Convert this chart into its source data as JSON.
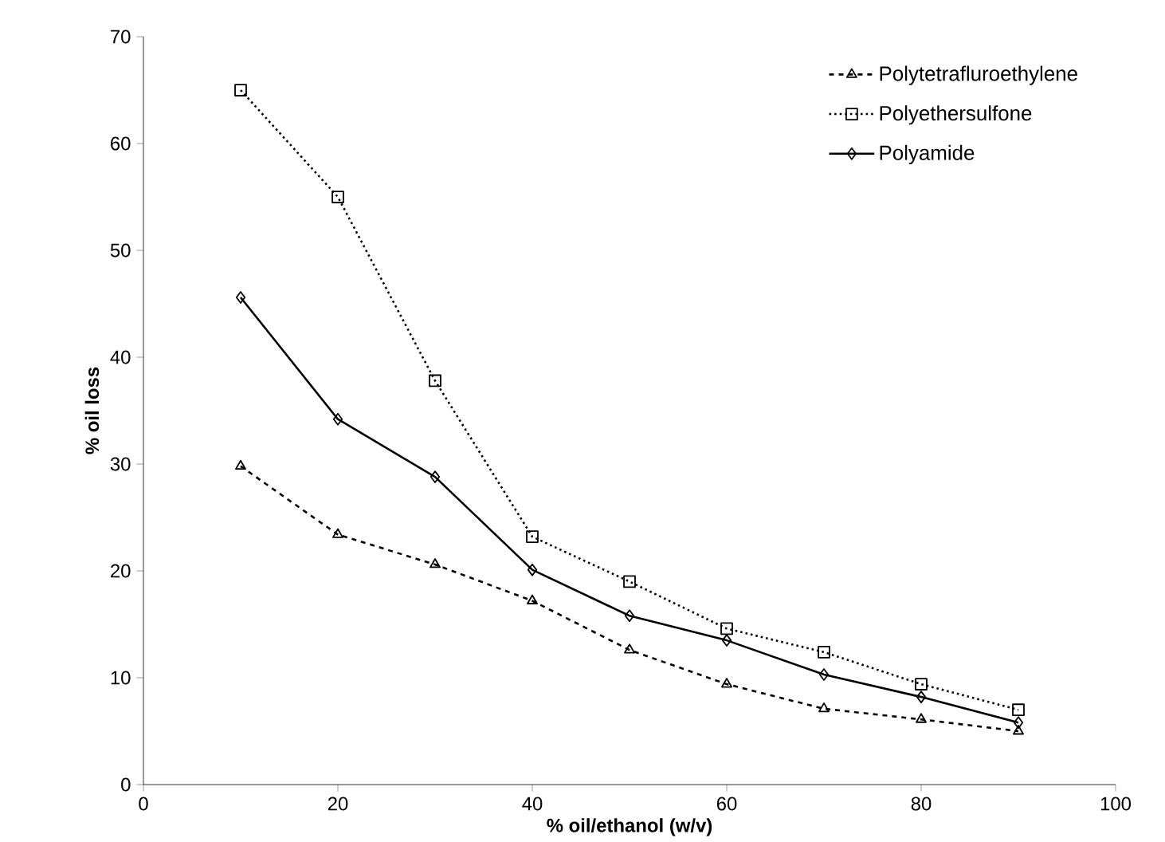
{
  "chart_data": {
    "type": "line",
    "xlabel": "% oil/ethanol (w/v)",
    "ylabel": "% oil loss",
    "x": [
      10,
      20,
      30,
      40,
      50,
      60,
      70,
      80,
      90
    ],
    "xlim": [
      0,
      100
    ],
    "xticks": [
      0,
      20,
      40,
      60,
      80,
      100
    ],
    "ylim": [
      0,
      70
    ],
    "yticks": [
      0,
      10,
      20,
      30,
      40,
      50,
      60,
      70
    ],
    "grid": false,
    "legend": "top right",
    "series": [
      {
        "name": "Polytetrafluroethylene",
        "color": "#000000",
        "marker": "triangle",
        "line_style": "dashed",
        "values": [
          29.8,
          23.4,
          20.6,
          17.2,
          12.6,
          9.4,
          7.1,
          6.1,
          5.0
        ]
      },
      {
        "name": "Polyethersulfone",
        "color": "#000000",
        "marker": "square",
        "line_style": "dotted",
        "values": [
          65.0,
          55.0,
          37.8,
          23.2,
          19.0,
          14.6,
          12.4,
          9.4,
          7.0
        ]
      },
      {
        "name": "Polyamide",
        "color": "#000000",
        "marker": "diamond",
        "line_style": "solid",
        "values": [
          45.6,
          34.2,
          28.8,
          20.1,
          15.8,
          13.5,
          10.3,
          8.2,
          5.8
        ]
      }
    ]
  }
}
